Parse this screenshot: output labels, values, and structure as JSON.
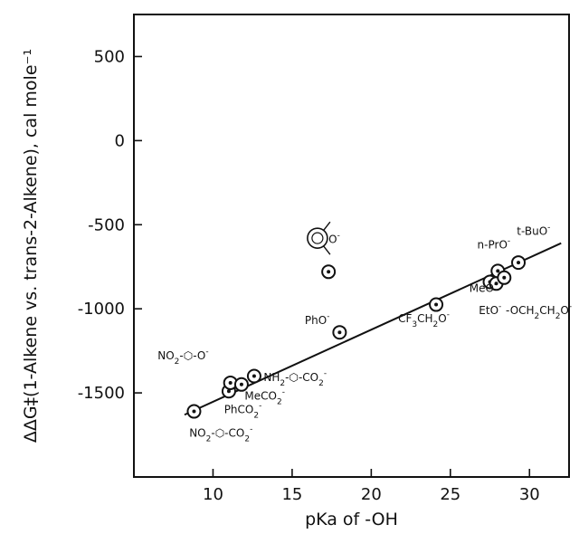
{
  "chart_data": {
    "type": "scatter",
    "xlabel": "pKa of -OH",
    "ylabel": "ΔΔG‡(1-Alkene vs. trans-2-Alkene), cal mole⁻¹",
    "xlim": [
      5,
      32.5
    ],
    "ylim": [
      -2000,
      750
    ],
    "xticks": [
      10,
      15,
      20,
      25,
      30
    ],
    "yticks": [
      500,
      0,
      -500,
      -1000,
      -1500
    ],
    "ytick_labels": [
      "500",
      "0",
      "-500",
      "-1000",
      "-1500"
    ],
    "grid": false,
    "points": [
      {
        "x": 8.8,
        "y": -1610
      },
      {
        "x": 11.0,
        "y": -1490
      },
      {
        "x": 11.1,
        "y": -1440
      },
      {
        "x": 11.8,
        "y": -1450
      },
      {
        "x": 12.6,
        "y": -1400
      },
      {
        "x": 17.3,
        "y": -780
      },
      {
        "x": 18.0,
        "y": -1140
      },
      {
        "x": 24.1,
        "y": -975
      },
      {
        "x": 27.5,
        "y": -840
      },
      {
        "x": 27.9,
        "y": -850
      },
      {
        "x": 28.0,
        "y": -775
      },
      {
        "x": 28.4,
        "y": -815
      },
      {
        "x": 29.3,
        "y": -725
      }
    ],
    "fit_line": {
      "x1": 8.2,
      "y1": -1630,
      "x2": 32.0,
      "y2": -610
    },
    "annotations": [
      {
        "parts": [
          {
            "t": "NO",
            "d": 0
          },
          {
            "t": "2",
            "d": 5
          },
          {
            "t": "-",
            "d": 0
          },
          {
            "t": "⬡",
            "d": 0
          },
          {
            "t": "-O",
            "d": 0
          },
          {
            "t": "-",
            "d": -6
          }
        ],
        "x": 6.5,
        "y": -1300
      },
      {
        "parts": [
          {
            "t": "NO",
            "d": 0
          },
          {
            "t": "2",
            "d": 5
          },
          {
            "t": "-⬡-CO",
            "d": 0
          },
          {
            "t": "2",
            "d": 5
          },
          {
            "t": "-",
            "d": -6
          }
        ],
        "x": 8.5,
        "y": -1760
      },
      {
        "parts": [
          {
            "t": "PhCO",
            "d": 0
          },
          {
            "t": "2",
            "d": 5
          },
          {
            "t": "-",
            "d": -6
          }
        ],
        "x": 10.7,
        "y": -1620
      },
      {
        "parts": [
          {
            "t": "MeCO",
            "d": 0
          },
          {
            "t": "2",
            "d": 5
          },
          {
            "t": "-",
            "d": -6
          }
        ],
        "x": 12.0,
        "y": -1540
      },
      {
        "parts": [
          {
            "t": "NH",
            "d": 0
          },
          {
            "t": "2",
            "d": 5
          },
          {
            "t": "-⬡-CO",
            "d": 0
          },
          {
            "t": "2",
            "d": 5
          },
          {
            "t": "-",
            "d": -6
          }
        ],
        "x": 13.2,
        "y": -1430
      },
      {
        "parts": [
          {
            "t": "PhO",
            "d": 0
          },
          {
            "t": "-",
            "d": -6
          }
        ],
        "x": 15.8,
        "y": -1090
      },
      {
        "parts": [
          {
            "t": "O",
            "d": 0
          },
          {
            "t": "-",
            "d": -6
          }
        ],
        "x": 17.3,
        "y": -610
      },
      {
        "parts": [
          {
            "t": "CF",
            "d": 0
          },
          {
            "t": "3",
            "d": 5
          },
          {
            "t": "CH",
            "d": 0
          },
          {
            "t": "2",
            "d": 5
          },
          {
            "t": "O",
            "d": 0
          },
          {
            "t": "-",
            "d": -6
          }
        ],
        "x": 21.7,
        "y": -1080
      },
      {
        "parts": [
          {
            "t": "MeO",
            "d": 0
          },
          {
            "t": "-",
            "d": -6
          }
        ],
        "x": 26.2,
        "y": -900
      },
      {
        "parts": [
          {
            "t": "EtO",
            "d": 0
          },
          {
            "t": "-",
            "d": -6
          }
        ],
        "x": 26.8,
        "y": -1030
      },
      {
        "parts": [
          {
            "t": "-OCH",
            "d": 0
          },
          {
            "t": "2",
            "d": 5
          },
          {
            "t": "CH",
            "d": 0
          },
          {
            "t": "2",
            "d": 5
          },
          {
            "t": "O",
            "d": 0
          },
          {
            "t": "-",
            "d": -6
          }
        ],
        "x": 28.5,
        "y": -1030
      },
      {
        "parts": [
          {
            "t": "n-PrO",
            "d": 0
          },
          {
            "t": "-",
            "d": -6
          }
        ],
        "x": 26.7,
        "y": -640
      },
      {
        "parts": [
          {
            "t": "t-BuO",
            "d": 0
          },
          {
            "t": "-",
            "d": -6
          }
        ],
        "x": 29.2,
        "y": -560
      }
    ]
  }
}
